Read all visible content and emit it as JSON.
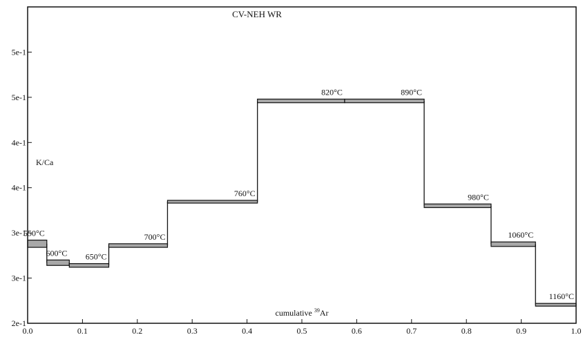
{
  "chart_data": {
    "type": "step",
    "title": "CV-NEH WR",
    "xlabel_prefix": "cumulative ",
    "xlabel_sup": "39",
    "xlabel_suffix": "Ar",
    "ylabel": "K/Ca",
    "xlim": [
      0.0,
      1.0
    ],
    "ylim": [
      0.2,
      0.55
    ],
    "grid": false,
    "x_ticks": [
      {
        "value": 0.0,
        "label": "0.0"
      },
      {
        "value": 0.1,
        "label": "0.1"
      },
      {
        "value": 0.2,
        "label": "0.2"
      },
      {
        "value": 0.3,
        "label": "0.3"
      },
      {
        "value": 0.4,
        "label": "0.4"
      },
      {
        "value": 0.5,
        "label": "0.5"
      },
      {
        "value": 0.6,
        "label": "0.6"
      },
      {
        "value": 0.7,
        "label": "0.7"
      },
      {
        "value": 0.8,
        "label": "0.8"
      },
      {
        "value": 0.9,
        "label": "0.9"
      },
      {
        "value": 1.0,
        "label": "1.0"
      }
    ],
    "y_ticks": [
      {
        "value": 0.2,
        "label": "2e-1"
      },
      {
        "value": 0.25,
        "label": "3e-1"
      },
      {
        "value": 0.3,
        "label": "3e-1"
      },
      {
        "value": 0.35,
        "label": "4e-1"
      },
      {
        "value": 0.4,
        "label": "4e-1"
      },
      {
        "value": 0.45,
        "label": "5e-1"
      },
      {
        "value": 0.5,
        "label": "5e-1"
      }
    ],
    "steps": [
      {
        "label": "550°C",
        "x0": 0.0,
        "x1": 0.035,
        "y_low": 0.284,
        "y_high": 0.292
      },
      {
        "label": "600°C",
        "x0": 0.035,
        "x1": 0.076,
        "y_low": 0.264,
        "y_high": 0.27
      },
      {
        "label": "650°C",
        "x0": 0.076,
        "x1": 0.148,
        "y_low": 0.262,
        "y_high": 0.266
      },
      {
        "label": "700°C",
        "x0": 0.148,
        "x1": 0.255,
        "y_low": 0.284,
        "y_high": 0.288
      },
      {
        "label": "760°C",
        "x0": 0.255,
        "x1": 0.419,
        "y_low": 0.333,
        "y_high": 0.336
      },
      {
        "label": "820°C",
        "x0": 0.419,
        "x1": 0.578,
        "y_low": 0.444,
        "y_high": 0.448
      },
      {
        "label": "890°C",
        "x0": 0.578,
        "x1": 0.723,
        "y_low": 0.444,
        "y_high": 0.448
      },
      {
        "label": "980°C",
        "x0": 0.723,
        "x1": 0.845,
        "y_low": 0.328,
        "y_high": 0.332
      },
      {
        "label": "1060°C",
        "x0": 0.845,
        "x1": 0.926,
        "y_low": 0.285,
        "y_high": 0.29
      },
      {
        "label": "1160°C",
        "x0": 0.926,
        "x1": 1.0,
        "y_low": 0.219,
        "y_high": 0.222
      }
    ]
  }
}
